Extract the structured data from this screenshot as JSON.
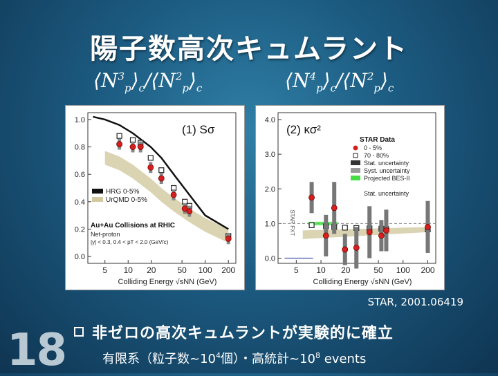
{
  "slide": {
    "title": "陽子数高次キュムラント",
    "slide_number": "18",
    "reference": "STAR, 2001.06419",
    "bullet": "非ゼロの高次キュムラントが実験的に確立",
    "sub_pre": "有限系（粒子数~10",
    "sub_exp1": "4",
    "sub_mid": "個）・高統計~10",
    "sub_exp2": "8",
    "sub_post": " events"
  },
  "formulas": {
    "left": {
      "n_num": "N",
      "sup_num": "3",
      "sub_num": "p",
      "c1": "c",
      "slash": "/",
      "n_den": "N",
      "sup_den": "2",
      "sub_den": "p",
      "c2": "c"
    },
    "right": {
      "n_num": "N",
      "sup_num": "4",
      "sub_num": "p",
      "c1": "c",
      "slash": "/",
      "n_den": "N",
      "sup_den": "2",
      "sub_den": "p",
      "c2": "c"
    }
  },
  "chart_data": [
    {
      "type": "scatter",
      "panel_label": "(1) Sσ",
      "xlabel": "Colliding Energy √sNN (GeV)",
      "xscale": "log",
      "xlim": [
        3,
        250
      ],
      "ylim": [
        -0.05,
        1.05
      ],
      "x_ticks": [
        "5",
        "10",
        "20",
        "50",
        "100",
        "200"
      ],
      "x_tick_values": [
        5,
        10,
        20,
        50,
        100,
        200
      ],
      "y_ticks": [
        "0.0",
        "0.2",
        "0.4",
        "0.6",
        "0.8",
        "1.0"
      ],
      "y_tick_values": [
        0.0,
        0.2,
        0.4,
        0.6,
        0.8,
        1.0
      ],
      "legend": [
        "HRG 0-5%",
        "UrQMD 0-5%"
      ],
      "annotations": [
        "Au+Au Collisions at RHIC",
        "Net-proton",
        "|y| < 0.3, 0.4 < pT < 2.0 (GeV/c)"
      ],
      "series": [
        {
          "name": "STAR Data 0-5%",
          "style": "red-dot",
          "x": [
            7.7,
            11.5,
            14.5,
            19.6,
            27,
            39,
            54.4,
            62.4,
            200
          ],
          "y": [
            0.82,
            0.8,
            0.8,
            0.65,
            0.57,
            0.45,
            0.35,
            0.33,
            0.13
          ]
        },
        {
          "name": "70-80%",
          "style": "open-square",
          "x": [
            7.7,
            11.5,
            14.5,
            19.6,
            27,
            39,
            54.4,
            62.4,
            200
          ],
          "y": [
            0.88,
            0.85,
            0.83,
            0.72,
            0.63,
            0.5,
            0.4,
            0.37,
            0.15
          ]
        },
        {
          "name": "HRG 0-5%",
          "style": "black-line",
          "x": [
            3.5,
            5,
            7.7,
            11.5,
            19.6,
            27,
            39,
            62.4,
            100,
            200
          ],
          "y": [
            1.02,
            1.0,
            0.96,
            0.9,
            0.8,
            0.72,
            0.6,
            0.45,
            0.3,
            0.2
          ]
        },
        {
          "name": "UrQMD 0-5%",
          "style": "tan-band",
          "x": [
            5,
            7.7,
            11.5,
            19.6,
            27,
            39,
            62.4,
            100,
            200
          ],
          "y": [
            0.72,
            0.68,
            0.62,
            0.52,
            0.45,
            0.38,
            0.3,
            0.23,
            0.15
          ]
        }
      ]
    },
    {
      "type": "scatter",
      "panel_label": "(2) κσ²",
      "xlabel": "Colliding Energy √sNN (GeV)",
      "xscale": "log",
      "xlim": [
        3,
        250
      ],
      "ylim": [
        -0.15,
        4.2
      ],
      "x_ticks": [
        "5",
        "10",
        "20",
        "50",
        "100",
        "200"
      ],
      "x_tick_values": [
        5,
        10,
        20,
        50,
        100,
        200
      ],
      "y_ticks": [
        "0.0",
        "1.0",
        "2.0",
        "3.0",
        "4.0"
      ],
      "y_tick_values": [
        0.0,
        1.0,
        2.0,
        3.0,
        4.0
      ],
      "legend": [
        "STAR Data",
        "0 - 5%",
        "70 - 80%",
        "Stat. uncertainty",
        "Syst. uncertainty",
        "Projected BES-II",
        "Stat. uncertainty"
      ],
      "annotations": [
        "STAR FXT"
      ],
      "series": [
        {
          "name": "0 - 5%",
          "style": "red-dot",
          "x": [
            7.7,
            11.5,
            14.5,
            19.6,
            27,
            39,
            54.4,
            62.4,
            200
          ],
          "y": [
            1.75,
            0.65,
            1.45,
            0.25,
            0.3,
            0.75,
            0.65,
            0.8,
            0.9
          ]
        },
        {
          "name": "70 - 80%",
          "style": "open-square",
          "x": [
            7.7,
            11.5,
            14.5,
            19.6,
            27,
            39,
            54.4,
            62.4,
            200
          ],
          "y": [
            0.95,
            0.92,
            0.9,
            0.88,
            0.87,
            0.86,
            0.85,
            0.84,
            0.83
          ]
        }
      ]
    }
  ],
  "colors": {
    "red_dot": "#d62020",
    "hrg": "#111111",
    "urqmd": "#d2c9a0",
    "bes": "#44dd44"
  }
}
